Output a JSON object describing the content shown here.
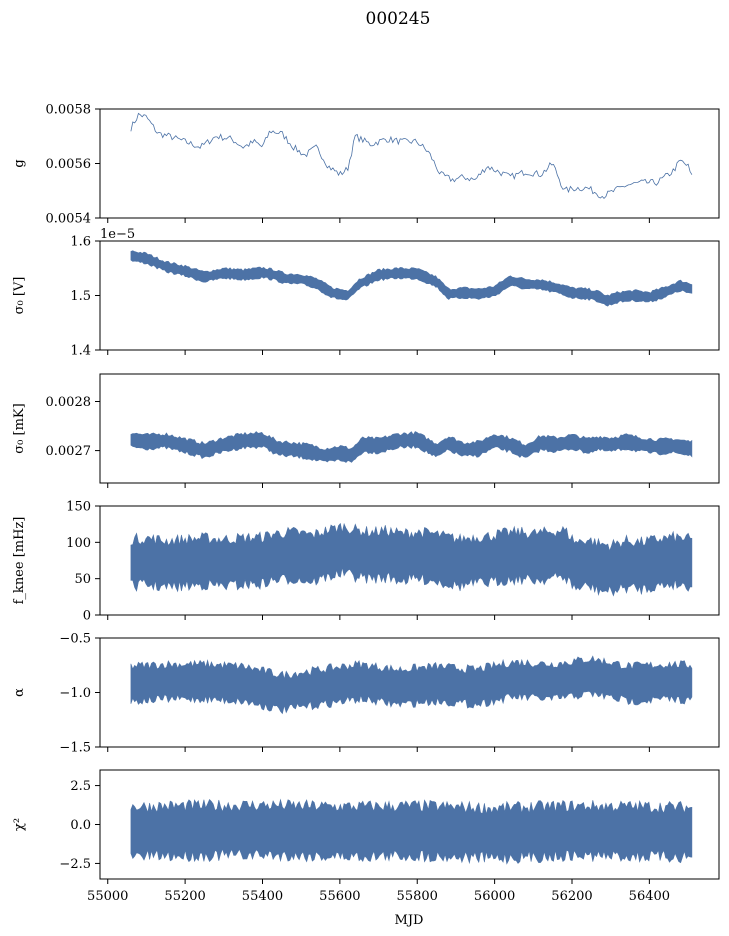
{
  "figure": {
    "title": "000245",
    "xlabel": "MJD"
  },
  "chart_data": {
    "type": "line",
    "title": "000245",
    "xlabel": "MJD",
    "xlim": [
      54980,
      56580
    ],
    "xticks": [
      55000,
      55200,
      55400,
      55600,
      55800,
      56000,
      56200,
      56400
    ],
    "xtick_labels": [
      "55000",
      "55200",
      "55400",
      "55600",
      "55800",
      "56000",
      "56200",
      "56400"
    ],
    "panels": [
      {
        "id": "g",
        "ylabel": "g",
        "offset_text": "",
        "ylim": [
          0.0054,
          0.0058
        ],
        "yticks": [
          0.0054,
          0.0056,
          0.0058
        ],
        "ytick_labels": [
          "0.0054",
          "0.0056",
          "0.0058"
        ],
        "style": "line",
        "x": [
          55060,
          55080,
          55100,
          55130,
          55160,
          55200,
          55240,
          55280,
          55320,
          55350,
          55380,
          55400,
          55420,
          55450,
          55480,
          55510,
          55540,
          55570,
          55600,
          55620,
          55640,
          55680,
          55720,
          55760,
          55800,
          55830,
          55860,
          55890,
          55920,
          55950,
          55980,
          56010,
          56040,
          56080,
          56120,
          56150,
          56180,
          56210,
          56240,
          56280,
          56310,
          56340,
          56380,
          56420,
          56460,
          56480,
          56500,
          56510
        ],
        "y": [
          0.00573,
          0.00578,
          0.00577,
          0.00571,
          0.0057,
          0.00568,
          0.00566,
          0.0057,
          0.00569,
          0.00566,
          0.00568,
          0.00566,
          0.00572,
          0.00571,
          0.00566,
          0.00563,
          0.00566,
          0.00559,
          0.00556,
          0.00558,
          0.0057,
          0.00567,
          0.00569,
          0.00568,
          0.00568,
          0.00564,
          0.00556,
          0.00554,
          0.00555,
          0.00554,
          0.00559,
          0.00557,
          0.00555,
          0.00557,
          0.00556,
          0.0056,
          0.0055,
          0.00551,
          0.00551,
          0.00548,
          0.0055,
          0.00552,
          0.00553,
          0.00553,
          0.00557,
          0.00561,
          0.00559,
          0.00555
        ],
        "noise": 1.2e-05
      },
      {
        "id": "sigma0V",
        "ylabel": "σ₀ [V]",
        "offset_text": "1e−5",
        "ylim": [
          1.4,
          1.6
        ],
        "yticks": [
          1.4,
          1.5,
          1.6
        ],
        "ytick_labels": [
          "1.4",
          "1.5",
          "1.6"
        ],
        "style": "band",
        "x": [
          55060,
          55100,
          55150,
          55200,
          55250,
          55300,
          55350,
          55400,
          55430,
          55460,
          55500,
          55540,
          55580,
          55620,
          55650,
          55700,
          55750,
          55800,
          55850,
          55880,
          55920,
          55960,
          56000,
          56040,
          56080,
          56120,
          56160,
          56200,
          56240,
          56270,
          56290,
          56320,
          56360,
          56400,
          56440,
          56480,
          56510
        ],
        "y": [
          1.573,
          1.568,
          1.553,
          1.545,
          1.534,
          1.541,
          1.538,
          1.542,
          1.538,
          1.531,
          1.53,
          1.522,
          1.505,
          1.5,
          1.521,
          1.538,
          1.541,
          1.54,
          1.525,
          1.503,
          1.505,
          1.503,
          1.508,
          1.527,
          1.521,
          1.52,
          1.514,
          1.505,
          1.503,
          1.498,
          1.49,
          1.497,
          1.5,
          1.497,
          1.506,
          1.518,
          1.512
        ],
        "band": 0.009
      },
      {
        "id": "sigma0mK",
        "ylabel": "σ₀ [mK]",
        "offset_text": "",
        "ylim": [
          0.002634,
          0.002856
        ],
        "yticks": [
          0.0027,
          0.0028
        ],
        "ytick_labels": [
          "0.0027",
          "0.0028"
        ],
        "style": "band",
        "x": [
          55060,
          55100,
          55150,
          55200,
          55250,
          55300,
          55350,
          55400,
          55440,
          55480,
          55520,
          55560,
          55600,
          55630,
          55660,
          55700,
          55750,
          55800,
          55850,
          55880,
          55920,
          55960,
          56000,
          56040,
          56080,
          56120,
          56160,
          56200,
          56240,
          56270,
          56300,
          56340,
          56380,
          56420,
          56460,
          56510
        ],
        "y": [
          0.002722,
          0.002718,
          0.00272,
          0.00271,
          0.0027,
          0.002712,
          0.00272,
          0.002722,
          0.002705,
          0.002702,
          0.002698,
          0.00269,
          0.002695,
          0.00269,
          0.002712,
          0.00271,
          0.00272,
          0.002722,
          0.0027,
          0.002715,
          0.002702,
          0.002704,
          0.00272,
          0.002712,
          0.002698,
          0.002716,
          0.002712,
          0.002718,
          0.00271,
          0.002715,
          0.002712,
          0.002718,
          0.002712,
          0.002708,
          0.00271,
          0.002704
        ],
        "band": 1.4e-05
      },
      {
        "id": "fknee",
        "ylabel": "f_knee [mHz]",
        "offset_text": "",
        "ylim": [
          0,
          150
        ],
        "yticks": [
          0,
          50,
          100,
          150
        ],
        "ytick_labels": [
          "0",
          "50",
          "100",
          "150"
        ],
        "style": "band",
        "x": [
          55060,
          55100,
          55150,
          55200,
          55250,
          55300,
          55350,
          55400,
          55430,
          55480,
          55530,
          55570,
          55610,
          55640,
          55680,
          55720,
          55760,
          55800,
          55840,
          55880,
          55910,
          55940,
          55980,
          56020,
          56060,
          56100,
          56140,
          56180,
          56210,
          56240,
          56270,
          56300,
          56340,
          56380,
          56420,
          56460,
          56510
        ],
        "y": [
          72,
          74,
          70,
          72,
          74,
          72,
          74,
          75,
          80,
          82,
          78,
          85,
          90,
          85,
          82,
          84,
          80,
          82,
          80,
          75,
          72,
          75,
          76,
          80,
          82,
          80,
          82,
          85,
          68,
          72,
          66,
          64,
          70,
          68,
          72,
          75,
          72
        ],
        "band": 32
      },
      {
        "id": "alpha",
        "ylabel": "α",
        "offset_text": "",
        "ylim": [
          -1.5,
          -0.5
        ],
        "yticks": [
          -1.5,
          -1.0,
          -0.5
        ],
        "ytick_labels": [
          "−1.5",
          "−1.0",
          "−0.5"
        ],
        "style": "band",
        "x": [
          55060,
          55150,
          55250,
          55350,
          55450,
          55550,
          55650,
          55750,
          55850,
          55950,
          56050,
          56150,
          56250,
          56350,
          56450,
          56510
        ],
        "y": [
          -0.92,
          -0.9,
          -0.9,
          -0.92,
          -1.0,
          -0.95,
          -0.9,
          -0.95,
          -0.92,
          -0.95,
          -0.88,
          -0.9,
          -0.85,
          -0.92,
          -0.9,
          -0.91
        ],
        "band": 0.16
      },
      {
        "id": "chi2",
        "ylabel": "χ²",
        "offset_text": "",
        "ylim": [
          -3.5,
          3.5
        ],
        "yticks": [
          -2.5,
          0.0,
          2.5
        ],
        "ytick_labels": [
          "−2.5",
          "0.0",
          "2.5"
        ],
        "style": "band",
        "x": [
          55060,
          55200,
          55400,
          55600,
          55800,
          56000,
          56200,
          56400,
          56510
        ],
        "y": [
          -0.45,
          -0.4,
          -0.35,
          -0.45,
          -0.4,
          -0.55,
          -0.4,
          -0.45,
          -0.5
        ],
        "band": 1.6
      }
    ]
  }
}
